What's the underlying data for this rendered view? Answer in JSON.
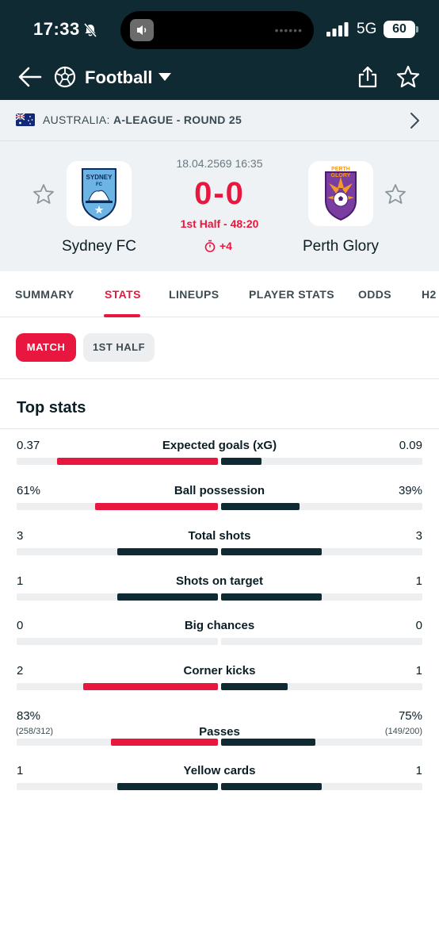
{
  "status_bar": {
    "time": "17:33",
    "network": "5G",
    "battery": "60"
  },
  "header": {
    "sport": "Football"
  },
  "league": {
    "country": "AUSTRALIA:",
    "name": "A-LEAGUE - ROUND 25"
  },
  "match": {
    "datetime": "18.04.2569 16:35",
    "score": "0-0",
    "status": "1st Half - 48:20",
    "added_time": "+4",
    "home": {
      "name": "Sydney FC",
      "logo_text": "SYDNEY FC"
    },
    "away": {
      "name": "Perth Glory",
      "logo_text": "PERTH GLORY"
    }
  },
  "tabs": [
    {
      "label": "SUMMARY"
    },
    {
      "label": "STATS"
    },
    {
      "label": "LINEUPS"
    },
    {
      "label": "PLAYER STATS"
    },
    {
      "label": "ODDS"
    },
    {
      "label": "H2"
    }
  ],
  "chips": {
    "match": "MATCH",
    "first_half": "1ST HALF"
  },
  "top_stats": {
    "title": "Top stats",
    "colors": {
      "leader": "#e8173f",
      "other": "#0f2a33",
      "track": "#eceef0"
    },
    "items": [
      {
        "label": "Expected goals (xG)",
        "home": "0.37",
        "away": "0.09",
        "home_fill": 0.8,
        "away_fill": 0.2,
        "leader": "home"
      },
      {
        "label": "Ball possession",
        "home": "61%",
        "away": "39%",
        "home_fill": 0.61,
        "away_fill": 0.39,
        "leader": "home"
      },
      {
        "label": "Total shots",
        "home": "3",
        "away": "3",
        "home_fill": 0.5,
        "away_fill": 0.5,
        "leader": "none"
      },
      {
        "label": "Shots on target",
        "home": "1",
        "away": "1",
        "home_fill": 0.5,
        "away_fill": 0.5,
        "leader": "none"
      },
      {
        "label": "Big chances",
        "home": "0",
        "away": "0",
        "home_fill": 0,
        "away_fill": 0,
        "leader": "none"
      },
      {
        "label": "Corner kicks",
        "home": "2",
        "away": "1",
        "home_fill": 0.67,
        "away_fill": 0.33,
        "leader": "home"
      },
      {
        "label": "Passes",
        "home": "83%",
        "away": "75%",
        "home_sub": "(258/312)",
        "away_sub": "(149/200)",
        "home_fill": 0.53,
        "away_fill": 0.47,
        "leader": "home"
      },
      {
        "label": "Yellow cards",
        "home": "1",
        "away": "1",
        "home_fill": 0.5,
        "away_fill": 0.5,
        "leader": "none"
      }
    ]
  }
}
